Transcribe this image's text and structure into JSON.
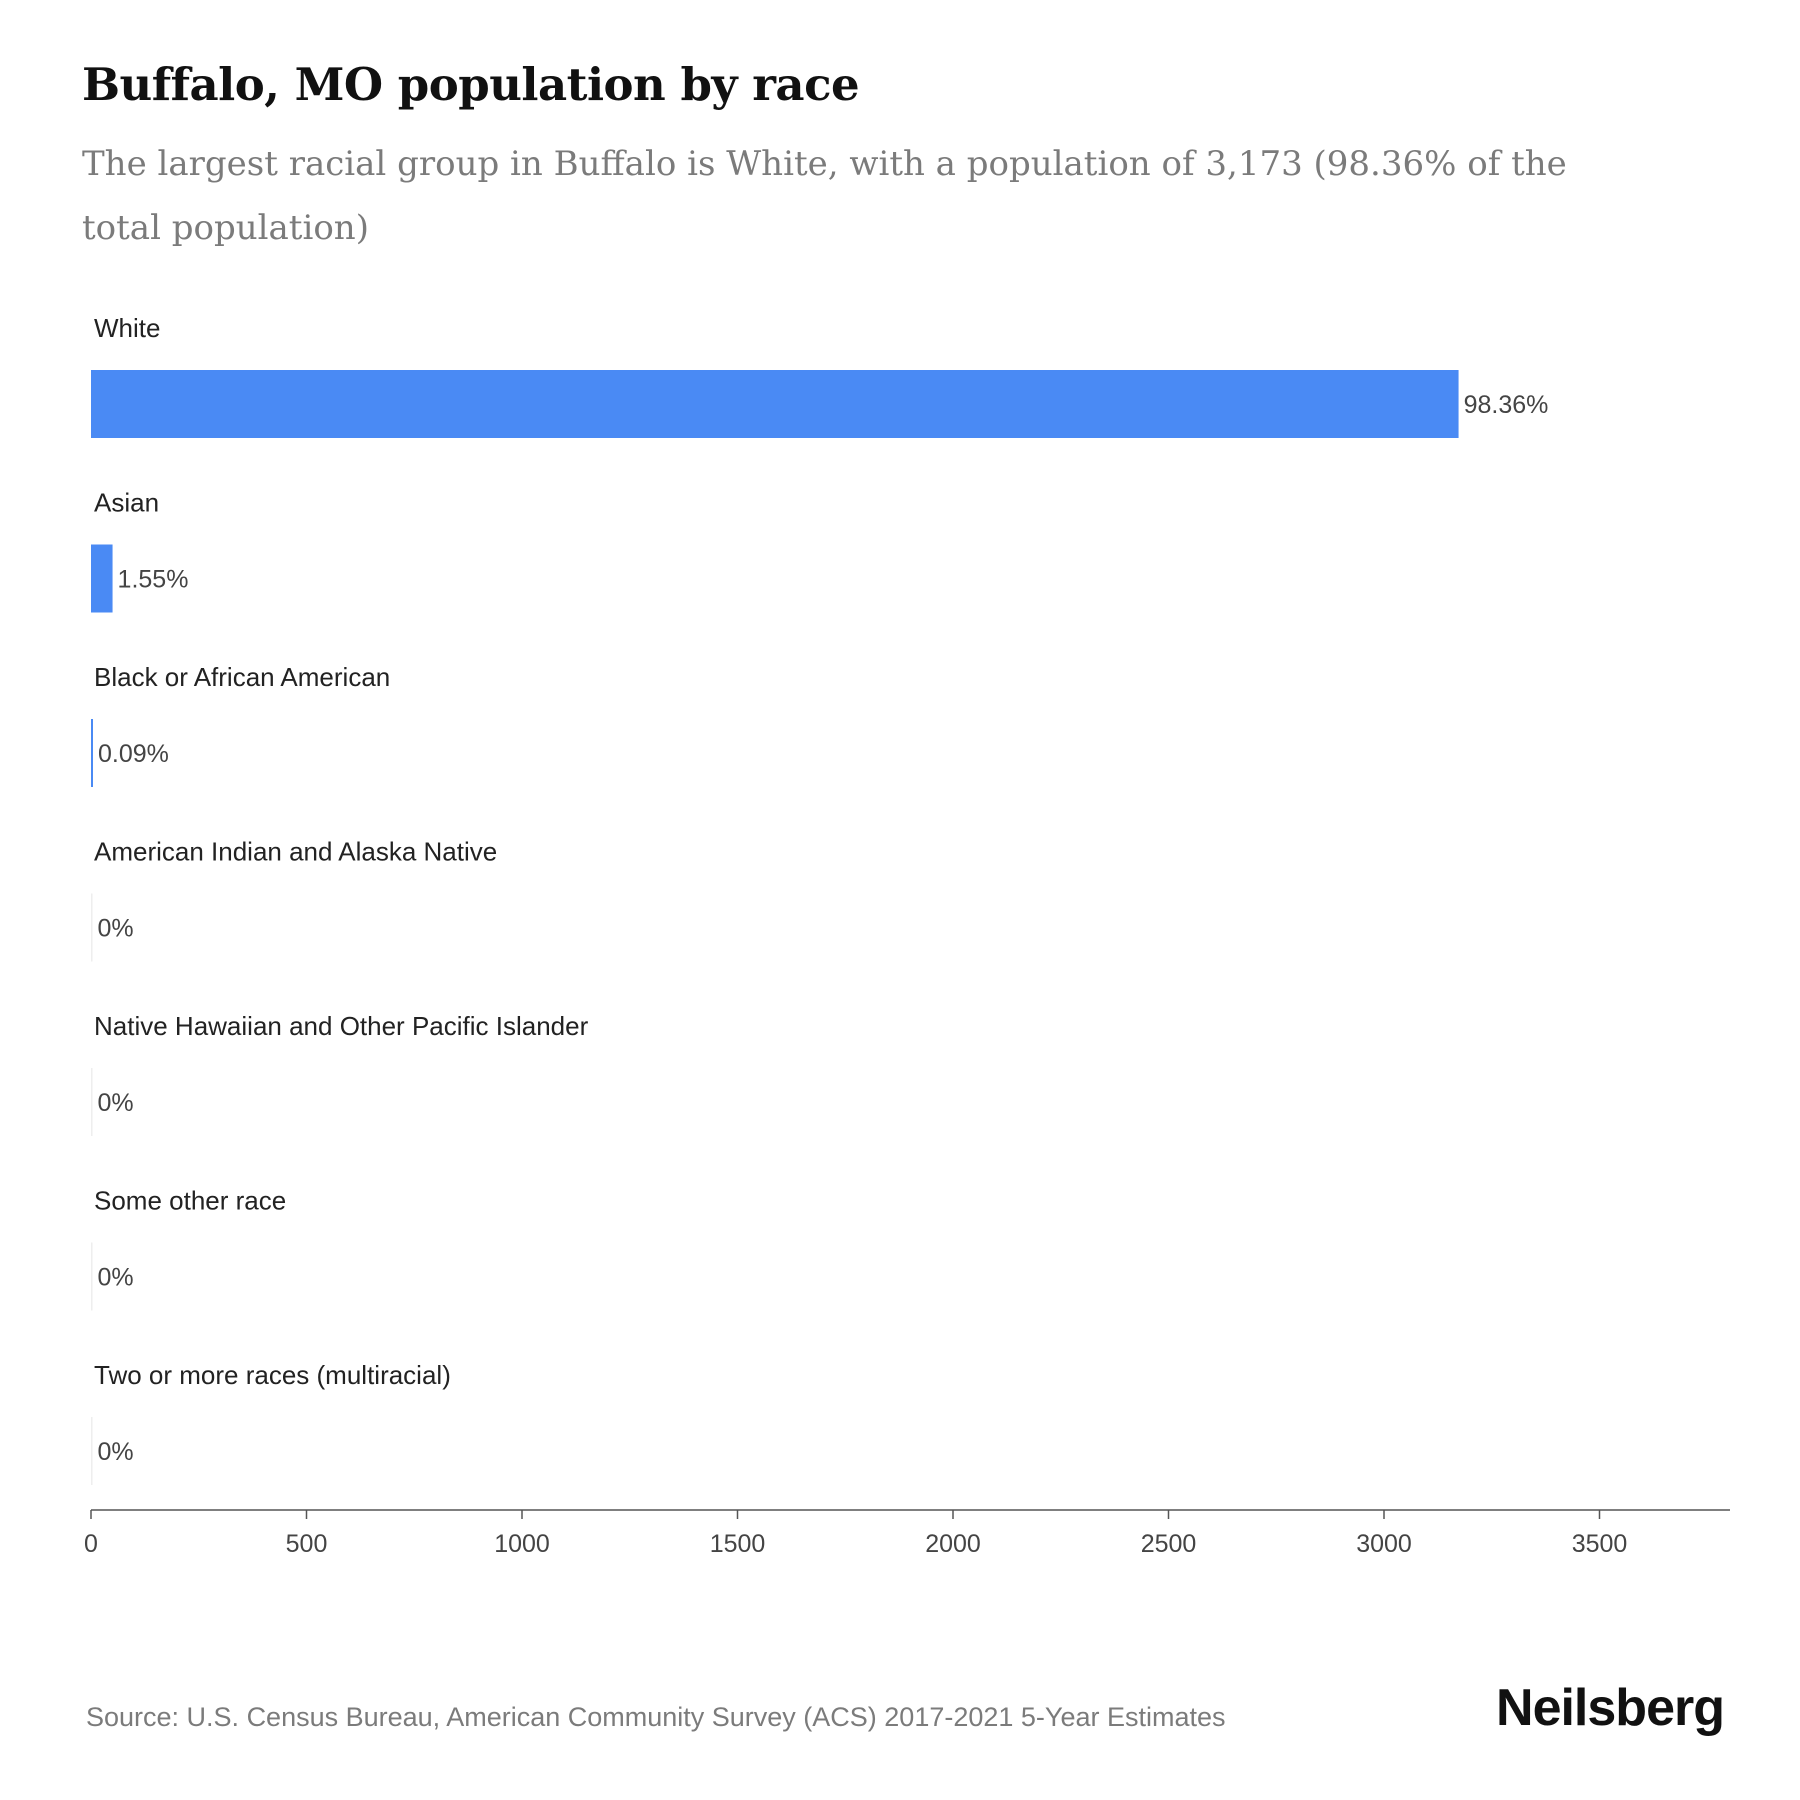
{
  "header": {
    "title": "Buffalo, MO population by race",
    "subtitle": "The largest racial group in Buffalo is White, with a population of 3,173 (98.36% of the total population)"
  },
  "footer": {
    "source": "Source: U.S. Census Bureau, American Community Survey (ACS) 2017-2021 5-Year Estimates",
    "brand": "Neilsberg"
  },
  "colors": {
    "bar": "#4a8af4",
    "axis": "#555555"
  },
  "chart_data": {
    "type": "bar",
    "orientation": "horizontal",
    "categories": [
      "White",
      "Asian",
      "Black or African American",
      "American Indian and Alaska Native",
      "Native Hawaiian and Other Pacific Islander",
      "Some other race",
      "Two or more races (multiracial)"
    ],
    "values": [
      3173,
      50,
      3,
      0,
      0,
      0,
      0
    ],
    "value_labels": [
      "98.36%",
      "1.55%",
      "0.09%",
      "0%",
      "0%",
      "0%",
      "0%"
    ],
    "xlim": [
      0,
      3800
    ],
    "xticks": [
      0,
      500,
      1000,
      1500,
      2000,
      2500,
      3000,
      3500
    ],
    "grid": false,
    "legend": "none"
  }
}
